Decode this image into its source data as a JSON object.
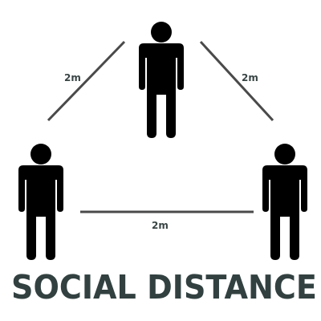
{
  "distance_labels": {
    "top_left": "2m",
    "top_right": "2m",
    "bottom": "2m"
  },
  "title": "SOCIAL DISTANCE",
  "colors": {
    "figure": "#000000",
    "line": "#4a4a4a",
    "label": "#3a4545",
    "title": "#324040",
    "background": "#ffffff"
  },
  "icons": [
    "person-icon",
    "person-icon",
    "person-icon"
  ]
}
